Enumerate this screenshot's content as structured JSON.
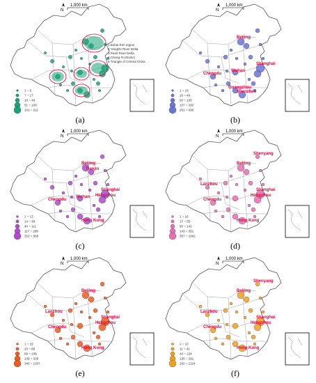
{
  "scale_label": "1,000 km",
  "north_label": "N",
  "panels": [
    {
      "id": "a",
      "caption": "(a)",
      "color": "#1aa37a",
      "legend": [
        "1 ~ 6",
        "7 ~ 17",
        "18 ~ 49",
        "51 ~ 100",
        "101 ~ 211"
      ],
      "regions": [
        "1.Bohai Rim region",
        "2.Yangtze River Delta",
        "3.Pearl River Delta",
        "4.Cheng-Yu District",
        "5.Triangle of Central China"
      ],
      "labels": []
    },
    {
      "id": "b",
      "caption": "(b)",
      "color": "#6a74d8",
      "legend": [
        "1 ~ 15",
        "16 ~ 49",
        "50 ~ 106",
        "107 ~ 260",
        "261 ~ 636"
      ],
      "regions": [],
      "labels": [
        "Beijing",
        "Shanghai",
        "Chengdu",
        "Wuhan",
        "Guangzhou",
        "Shenzhen"
      ]
    },
    {
      "id": "c",
      "caption": "(c)",
      "color": "#b04ad0",
      "legend": [
        "1 ~ 13",
        "14 ~ 39",
        "40 ~ 111",
        "117 ~ 299",
        "310 ~ 968"
      ],
      "regions": [],
      "labels": [
        "Beijing",
        "Shanghai",
        "Hangzhou",
        "Hong Kong",
        "Chengdu",
        "Wuhan",
        "Tianjin"
      ]
    },
    {
      "id": "d",
      "caption": "(d)",
      "color": "#e86fb0",
      "legend": [
        "1 ~ 16",
        "17 ~ 55",
        "56 ~ 142",
        "143 ~ 351",
        "357 ~ 1062"
      ],
      "regions": [],
      "labels": [
        "Shenyang",
        "Beijing",
        "Lanzhou",
        "Chengdu",
        "Shanghai",
        "Hangzhou",
        "Hong Kong"
      ]
    },
    {
      "id": "e",
      "caption": "(e)",
      "color": "#f05a1e",
      "legend": [
        "1 ~ 19",
        "20 ~ 68",
        "69 ~ 138",
        "139 ~ 339",
        "340 ~ 1267"
      ],
      "regions": [],
      "labels": [
        "Beijing",
        "Lanzhou",
        "Chengdu",
        "Shanghai",
        "Hangzhou",
        "Hong Kong"
      ]
    },
    {
      "id": "f",
      "caption": "(f)",
      "color": "#f0a020",
      "legend": [
        "1 ~ 10",
        "11 ~ 41",
        "42 ~ 124",
        "125 ~ 291",
        "292 ~ 1224"
      ],
      "regions": [],
      "labels": [
        "Shenyang",
        "Beijing",
        "Lanzhou",
        "Chengdu",
        "Shanghai",
        "Hangzhou",
        "Hong Kong"
      ]
    }
  ]
}
